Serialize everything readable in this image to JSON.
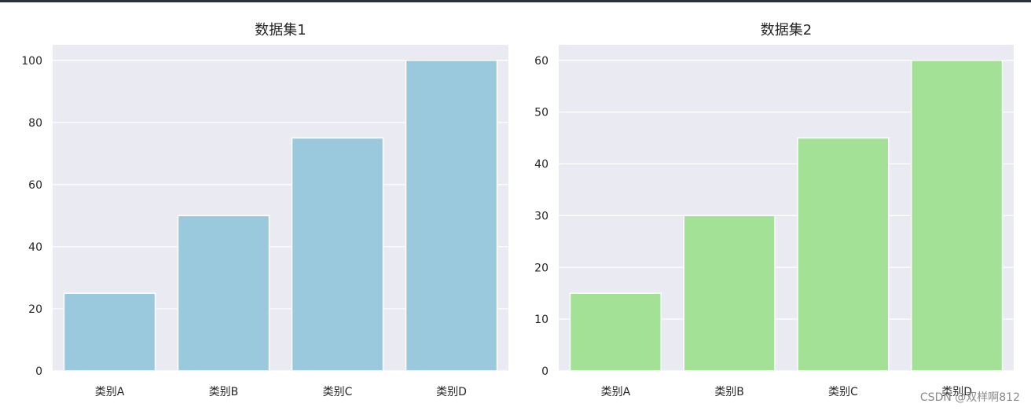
{
  "chart_data": [
    {
      "type": "bar",
      "title": "数据集1",
      "categories": [
        "类别A",
        "类别B",
        "类别C",
        "类别D"
      ],
      "values": [
        25,
        50,
        75,
        100
      ],
      "ylim": [
        0,
        105
      ],
      "yticks": [
        "0",
        "20",
        "40",
        "60",
        "80",
        "100"
      ],
      "ytick_values": [
        0,
        20,
        40,
        60,
        80,
        100
      ],
      "color": "#9ac9de",
      "background": "#eaeaf2",
      "grid": true
    },
    {
      "type": "bar",
      "title": "数据集2",
      "categories": [
        "类别A",
        "类别B",
        "类别C",
        "类别D"
      ],
      "values": [
        15,
        30,
        45,
        60
      ],
      "ylim": [
        0,
        63
      ],
      "yticks": [
        "0",
        "10",
        "20",
        "30",
        "40",
        "50",
        "60"
      ],
      "ytick_values": [
        0,
        10,
        20,
        30,
        40,
        50,
        60
      ],
      "color": "#a3e197",
      "background": "#eaeaf2",
      "grid": true
    }
  ],
  "watermark": "CSDN @双样啊812"
}
